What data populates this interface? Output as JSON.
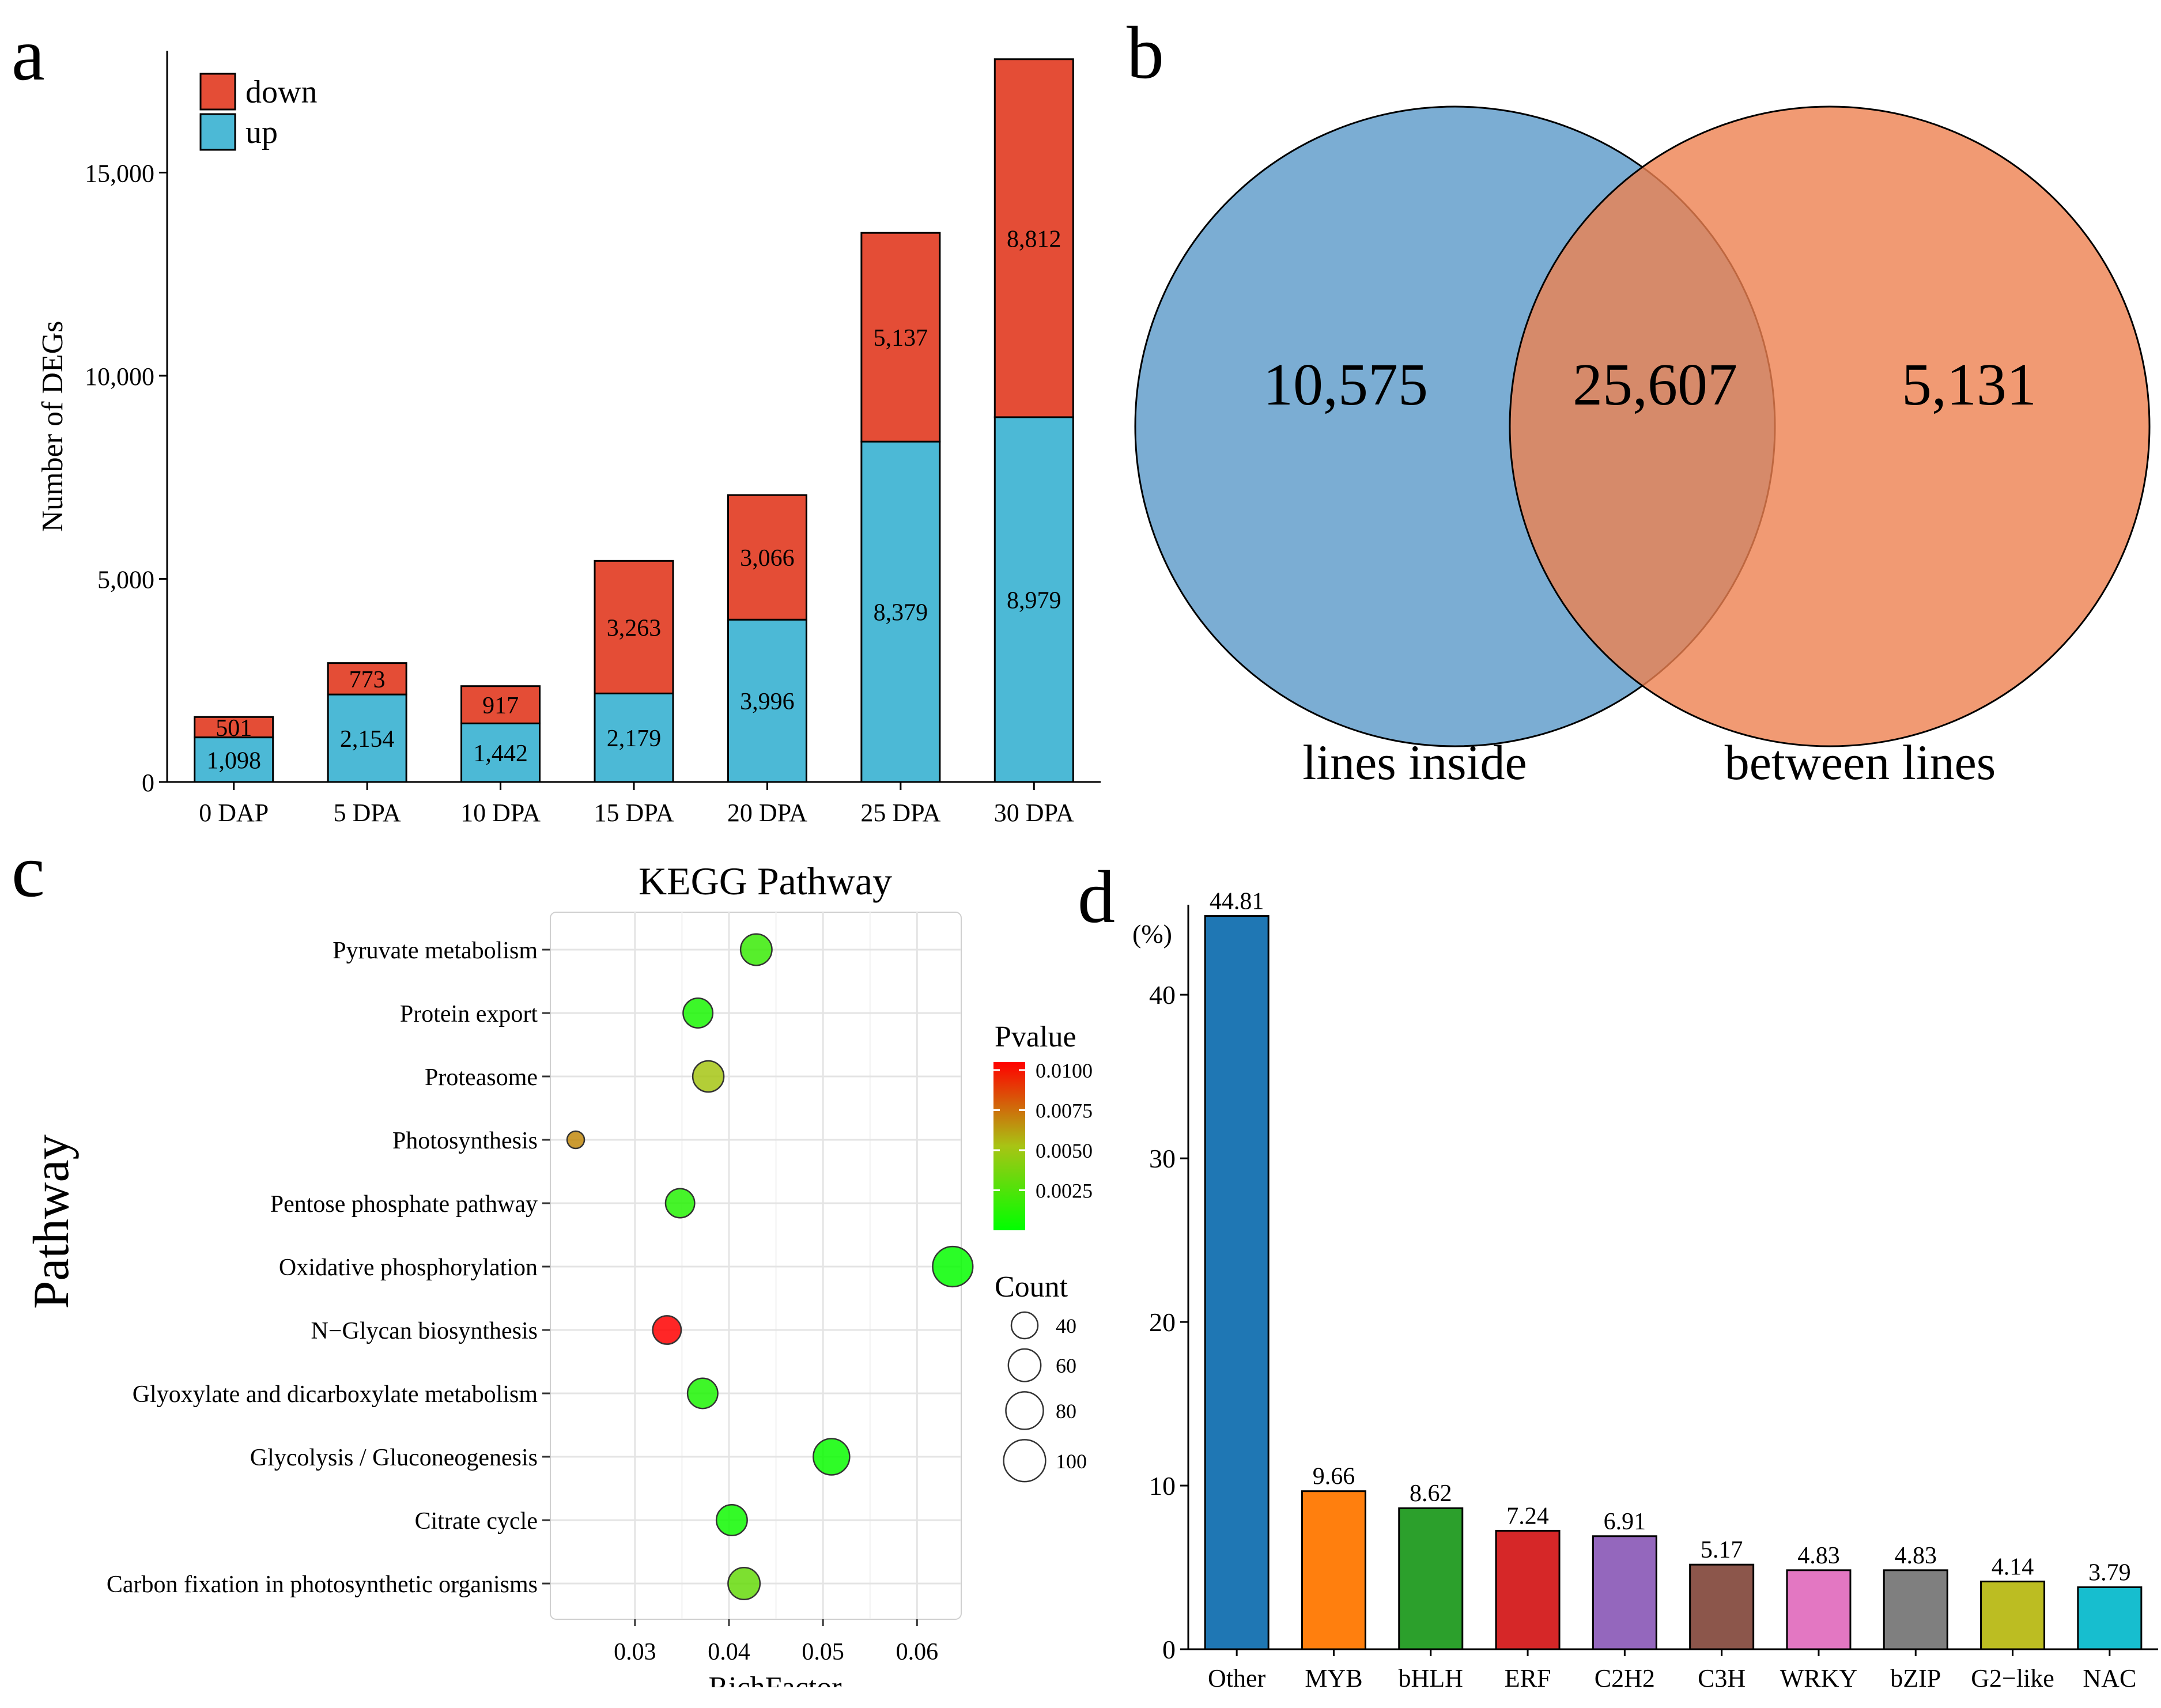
{
  "panel_labels": {
    "a": "a",
    "b": "b",
    "c": "c",
    "d": "d"
  },
  "chart_data": [
    {
      "panel": "a",
      "type": "bar",
      "stacked": true,
      "title": "",
      "xlabel": "",
      "ylabel": "Number of DEGs",
      "ylim": [
        0,
        18000
      ],
      "yticks": [
        0,
        5000,
        10000,
        15000
      ],
      "ytick_labels": [
        "0",
        "5,000",
        "10,000",
        "15,000"
      ],
      "categories": [
        "0 DAP",
        "5 DPA",
        "10 DPA",
        "15 DPA",
        "20 DPA",
        "25 DPA",
        "30 DPA"
      ],
      "series": [
        {
          "name": "up",
          "color": "#4cb9d6",
          "values": [
            1098,
            2154,
            1442,
            2179,
            3996,
            8379,
            8979
          ],
          "labels": [
            "1,098",
            "2,154",
            "1,442",
            "2,179",
            "3,996",
            "8,379",
            "8,979"
          ]
        },
        {
          "name": "down",
          "color": "#e44d36",
          "values": [
            501,
            773,
            917,
            3263,
            3066,
            5137,
            8812
          ],
          "labels": [
            "501",
            "773",
            "917",
            "3,263",
            "3,066",
            "5,137",
            "8,812"
          ]
        }
      ],
      "legend": {
        "position": "top-left",
        "items": [
          {
            "name": "down",
            "color": "#e44d36"
          },
          {
            "name": "up",
            "color": "#4cb9d6"
          }
        ]
      }
    },
    {
      "panel": "b",
      "type": "venn",
      "sets": [
        {
          "name": "lines inside",
          "color": "#5a98c8",
          "only": "10,575"
        },
        {
          "name": "between lines",
          "color": "#ed8150",
          "only": "5,131"
        }
      ],
      "intersection": "25,607"
    },
    {
      "panel": "c",
      "type": "scatter",
      "title": "KEGG Pathway",
      "xlabel": "RichFactor",
      "ylabel": "Pathway",
      "xlim": [
        0.021,
        0.0647
      ],
      "xticks": [
        0.03,
        0.04,
        0.05,
        0.06
      ],
      "xtick_labels": [
        "0.03",
        "0.04",
        "0.05",
        "0.06"
      ],
      "categories": [
        "Pyruvate metabolism",
        "Protein export",
        "Proteasome",
        "Photosynthesis",
        "Pentose phosphate pathway",
        "Oxidative phosphorylation",
        "N−Glycan biosynthesis",
        "Glyoxylate and dicarboxylate metabolism",
        "Glycolysis / Gluconeogenesis",
        "Citrate cycle",
        "Carbon fixation in photosynthetic organisms"
      ],
      "points": [
        {
          "pathway": "Pyruvate metabolism",
          "rich_factor": 0.0429,
          "count": 56,
          "pvalue": 0.0018
        },
        {
          "pathway": "Protein export",
          "rich_factor": 0.0367,
          "count": 50,
          "pvalue": 0.0008
        },
        {
          "pathway": "Proteasome",
          "rich_factor": 0.0378,
          "count": 55,
          "pvalue": 0.0052
        },
        {
          "pathway": "Photosynthesis",
          "rich_factor": 0.0237,
          "count": 17,
          "pvalue": 0.0068
        },
        {
          "pathway": "Pentose phosphate pathway",
          "rich_factor": 0.0348,
          "count": 48,
          "pvalue": 0.0012
        },
        {
          "pathway": "Oxidative phosphorylation",
          "rich_factor": 0.0638,
          "count": 92,
          "pvalue": 0.0002
        },
        {
          "pathway": "N−Glycan biosynthesis",
          "rich_factor": 0.0334,
          "count": 46,
          "pvalue": 0.0105
        },
        {
          "pathway": "Glyoxylate and dicarboxylate metabolism",
          "rich_factor": 0.0372,
          "count": 52,
          "pvalue": 0.0009
        },
        {
          "pathway": "Glycolysis / Gluconeogenesis",
          "rich_factor": 0.0509,
          "count": 75,
          "pvalue": 0.0003
        },
        {
          "pathway": "Citrate cycle",
          "rich_factor": 0.0403,
          "count": 54,
          "pvalue": 0.0005
        },
        {
          "pathway": "Carbon fixation in photosynthetic organisms",
          "rich_factor": 0.0416,
          "count": 58,
          "pvalue": 0.0032
        }
      ],
      "pvalue_legend": {
        "title": "Pvalue",
        "range": [
          0.0,
          0.0105
        ],
        "ticks": [
          0.01,
          0.0075,
          0.005,
          0.0025
        ],
        "tick_labels": [
          "0.0100",
          "0.0075",
          "0.0050",
          "0.0025"
        ],
        "low_color": "#00ff00",
        "high_color": "#ff0000"
      },
      "count_legend": {
        "title": "Count",
        "values": [
          40,
          60,
          80,
          100
        ],
        "labels": [
          "40",
          "60",
          "80",
          "100"
        ]
      }
    },
    {
      "panel": "d",
      "type": "bar",
      "title": "",
      "xlabel": "",
      "ylabel": "(%)",
      "ylim": [
        0,
        45.5
      ],
      "yticks": [
        0,
        10,
        20,
        30,
        40
      ],
      "ytick_labels": [
        "0",
        "10",
        "20",
        "30",
        "40"
      ],
      "categories": [
        "Other",
        "MYB",
        "bHLH",
        "ERF",
        "C2H2",
        "C3H",
        "WRKY",
        "bZIP",
        "G2−like",
        "NAC"
      ],
      "values": [
        44.81,
        9.66,
        8.62,
        7.24,
        6.91,
        5.17,
        4.83,
        4.83,
        4.14,
        3.79
      ],
      "value_labels": [
        "44.81",
        "9.66",
        "8.62",
        "7.24",
        "6.91",
        "5.17",
        "4.83",
        "4.83",
        "4.14",
        "3.79"
      ],
      "colors": [
        "#1f77b4",
        "#ff7f0e",
        "#2ca02c",
        "#d62728",
        "#9467bd",
        "#8c564b",
        "#e377c2",
        "#7f7f7f",
        "#bcbd22",
        "#17becf"
      ]
    }
  ]
}
